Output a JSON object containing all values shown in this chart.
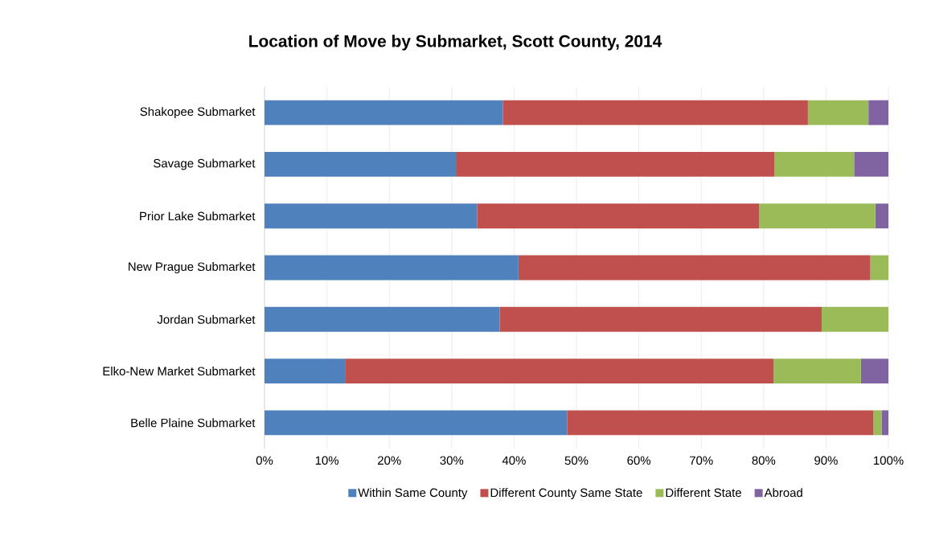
{
  "chart_data": {
    "type": "bar",
    "orientation": "horizontal",
    "stacked": true,
    "title": "Location of Move by Submarket, Scott County, 2014",
    "categories": [
      "Shakopee Submarket",
      "Savage Submarket",
      "Prior Lake Submarket",
      "New Prague Submarket",
      "Jordan Submarket",
      "Elko-New Market Submarket",
      "Belle Plaine Submarket"
    ],
    "series": [
      {
        "name": "Within Same County",
        "color": "#4f81bd",
        "values": [
          38.2,
          30.8,
          34.1,
          40.7,
          37.7,
          12.9,
          48.5
        ]
      },
      {
        "name": "Different County Same State",
        "color": "#c0504d",
        "values": [
          48.9,
          50.9,
          45.2,
          56.4,
          51.6,
          68.7,
          49.1
        ]
      },
      {
        "name": "Different State",
        "color": "#9bbb59",
        "values": [
          9.7,
          12.8,
          18.6,
          2.9,
          10.7,
          14.0,
          1.3
        ]
      },
      {
        "name": "Abroad",
        "color": "#8064a2",
        "values": [
          3.2,
          5.5,
          2.1,
          0,
          0,
          4.4,
          1.1
        ]
      }
    ],
    "xlim": [
      0,
      100
    ],
    "xticks": [
      {
        "value": 0,
        "label": "0%"
      },
      {
        "value": 10,
        "label": "10%"
      },
      {
        "value": 20,
        "label": "20%"
      },
      {
        "value": 30,
        "label": "30%"
      },
      {
        "value": 40,
        "label": "40%"
      },
      {
        "value": 50,
        "label": "50%"
      },
      {
        "value": 60,
        "label": "60%"
      },
      {
        "value": 70,
        "label": "70%"
      },
      {
        "value": 80,
        "label": "80%"
      },
      {
        "value": 90,
        "label": "90%"
      },
      {
        "value": 100,
        "label": "100%"
      }
    ],
    "grid": "x",
    "legend": "bottom"
  }
}
